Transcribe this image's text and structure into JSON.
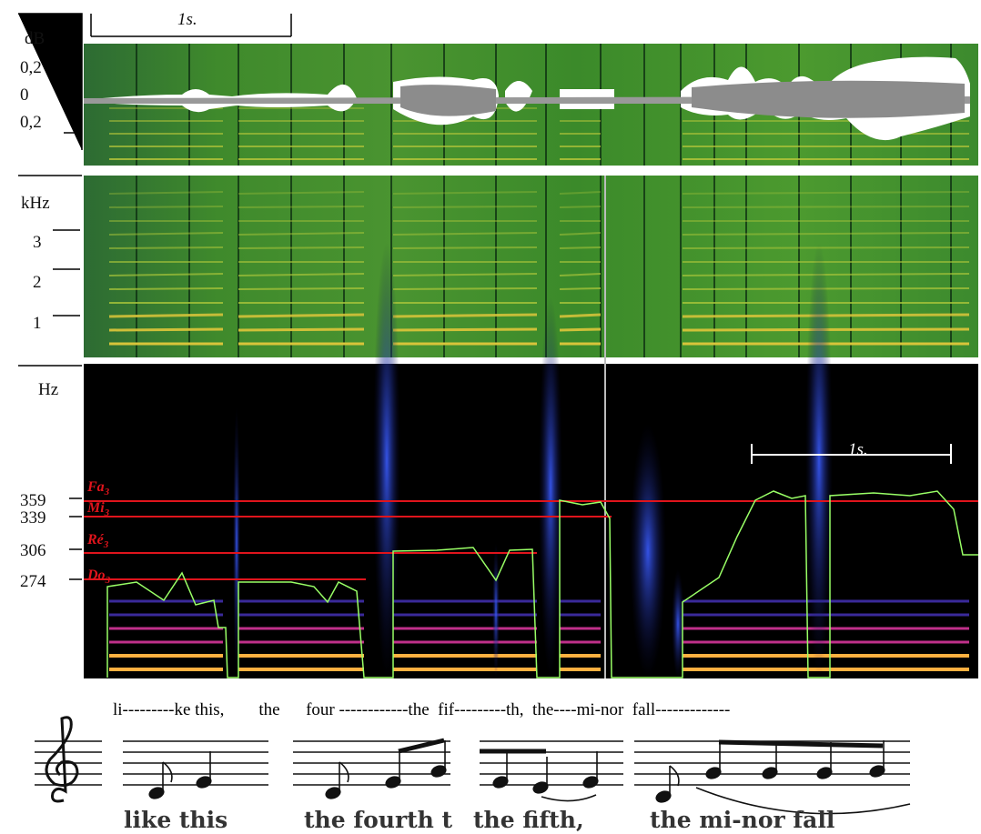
{
  "waveform_panel": {
    "unit": "dB",
    "ticks": [
      "0,2",
      "0",
      "0,2"
    ],
    "scale": "1s."
  },
  "spectrogram_panel": {
    "unit": "kHz",
    "ticks": [
      "3",
      "2",
      "1"
    ]
  },
  "pitch_panel": {
    "unit": "Hz",
    "ticks": [
      "359",
      "339",
      "306",
      "274"
    ],
    "notes": [
      {
        "name": "Fa",
        "octave": "3"
      },
      {
        "name": "Mi",
        "octave": "3"
      },
      {
        "name": "Ré",
        "octave": "3"
      },
      {
        "name": "Do",
        "octave": "3"
      }
    ],
    "scale": "1s."
  },
  "lyrics": "li---------ke this,        the      four ------------the  fif---------th,  the----mi-nor  fall-------------",
  "score_captions": [
    "like this",
    "the fourth t",
    "the fifth,",
    "the mi-nor fall"
  ]
}
